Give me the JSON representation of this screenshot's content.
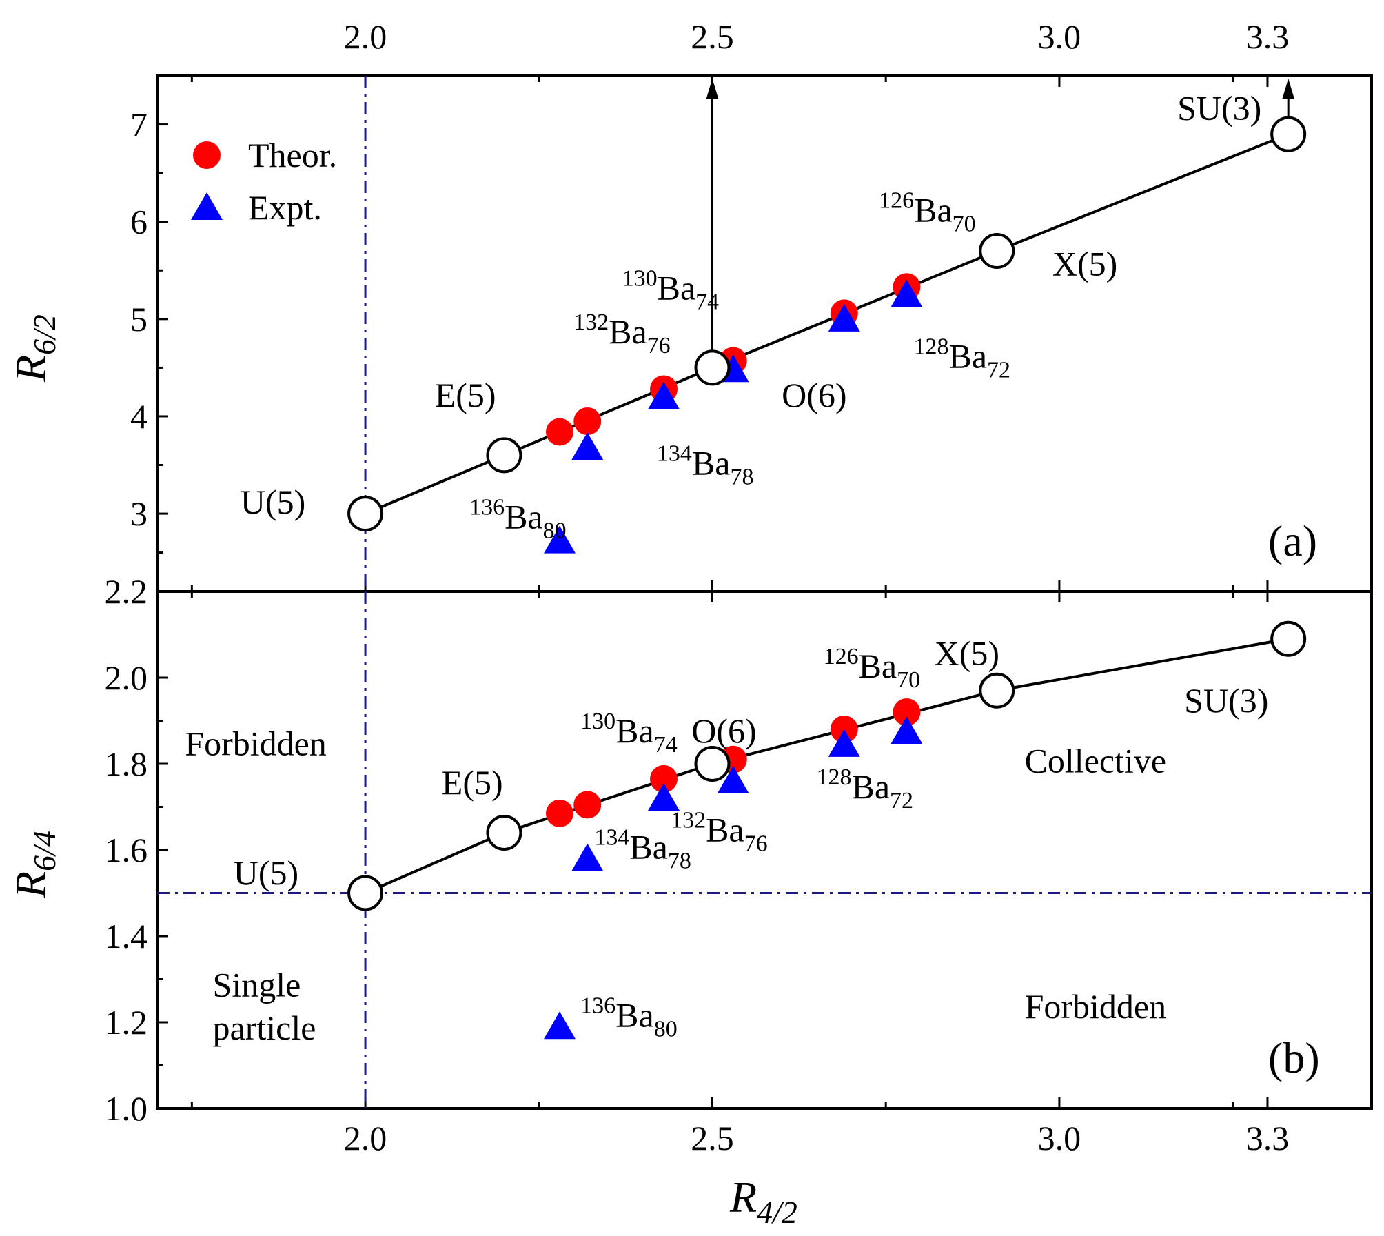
{
  "chart_data": [
    {
      "type": "scatter",
      "panel_label": "(a)",
      "xlabel": "",
      "ylabel": "R",
      "ylabel_sub": "6/2",
      "xlim": [
        1.7,
        3.45
      ],
      "ylim": [
        2.2,
        7.5
      ],
      "x_tick_values": [
        2.0,
        2.5,
        3.0,
        3.3
      ],
      "x_ticks": [
        "2.0",
        "2.5",
        "3.0",
        "3.3"
      ],
      "y_tick_values": [
        2.2,
        3,
        4,
        5,
        6,
        7
      ],
      "y_ticks": [
        "2.2",
        "3",
        "4",
        "5",
        "6",
        "7"
      ],
      "legend": {
        "position": "top-left",
        "entries": [
          "Theor.",
          "Expt."
        ]
      },
      "series": [
        {
          "name": "Theor.",
          "marker": "filled-circle",
          "color": "#ff0000",
          "points": [
            {
              "x": 2.28,
              "y": 3.84
            },
            {
              "x": 2.32,
              "y": 3.95
            },
            {
              "x": 2.43,
              "y": 4.28
            },
            {
              "x": 2.53,
              "y": 4.57
            },
            {
              "x": 2.69,
              "y": 5.06
            },
            {
              "x": 2.78,
              "y": 5.33
            }
          ]
        },
        {
          "name": "Expt.",
          "marker": "filled-triangle",
          "color": "#0000ff",
          "points": [
            {
              "x": 2.28,
              "y": 2.72
            },
            {
              "x": 2.32,
              "y": 3.68
            },
            {
              "x": 2.43,
              "y": 4.2
            },
            {
              "x": 2.53,
              "y": 4.48
            },
            {
              "x": 2.69,
              "y": 5.0
            },
            {
              "x": 2.78,
              "y": 5.25
            }
          ]
        },
        {
          "name": "",
          "marker": "open-circle",
          "color": "#000000",
          "connected": true,
          "points": [
            {
              "x": 2.0,
              "y": 3.0
            },
            {
              "x": 2.2,
              "y": 3.6
            },
            {
              "x": 2.5,
              "y": 4.5
            },
            {
              "x": 2.91,
              "y": 5.7
            },
            {
              "x": 3.33,
              "y": 6.9
            }
          ]
        }
      ],
      "reference_lines": [
        {
          "axis": "x",
          "value": 2.0,
          "style": "dash-dot"
        }
      ],
      "arrows": [
        {
          "x": 2.5,
          "y_from": 4.5,
          "y_to": 7.5
        },
        {
          "x": 3.33,
          "y_from": 6.9,
          "y_to": 7.5
        }
      ],
      "annotations": [
        {
          "text": "U(5)",
          "x": 1.82,
          "y": 3.0
        },
        {
          "text": "E(5)",
          "x": 2.1,
          "y": 4.1
        },
        {
          "text": "O(6)",
          "x": 2.6,
          "y": 4.1
        },
        {
          "text": "X(5)",
          "x": 2.99,
          "y": 5.45
        },
        {
          "text": "SU(3)",
          "x": 3.17,
          "y": 7.05
        },
        {
          "mass": "136",
          "element": "Ba",
          "sub": "80",
          "x": 2.15,
          "y": 2.85
        },
        {
          "mass": "134",
          "element": "Ba",
          "sub": "78",
          "x": 2.42,
          "y": 3.4
        },
        {
          "mass": "132",
          "element": "Ba",
          "sub": "76",
          "x": 2.3,
          "y": 4.75
        },
        {
          "mass": "130",
          "element": "Ba",
          "sub": "74",
          "x": 2.37,
          "y": 5.2
        },
        {
          "mass": "128",
          "element": "Ba",
          "sub": "72",
          "x": 2.79,
          "y": 4.5
        },
        {
          "mass": "126",
          "element": "Ba",
          "sub": "70",
          "x": 2.74,
          "y": 6.0
        }
      ]
    },
    {
      "type": "scatter",
      "panel_label": "(b)",
      "xlabel": "R",
      "xlabel_sub": "4/2",
      "ylabel": "R",
      "ylabel_sub": "6/4",
      "xlim": [
        1.7,
        3.45
      ],
      "ylim": [
        1.0,
        2.2
      ],
      "x_tick_values": [
        2.0,
        2.5,
        3.0,
        3.3
      ],
      "x_ticks": [
        "2.0",
        "2.5",
        "3.0",
        "3.3"
      ],
      "y_tick_values": [
        1.0,
        1.2,
        1.4,
        1.6,
        1.8,
        2.0
      ],
      "y_ticks": [
        "1.0",
        "1.2",
        "1.4",
        "1.6",
        "1.8",
        "2.0"
      ],
      "series": [
        {
          "name": "Theor.",
          "marker": "filled-circle",
          "color": "#ff0000",
          "points": [
            {
              "x": 2.28,
              "y": 1.685
            },
            {
              "x": 2.32,
              "y": 1.705
            },
            {
              "x": 2.43,
              "y": 1.765
            },
            {
              "x": 2.53,
              "y": 1.81
            },
            {
              "x": 2.69,
              "y": 1.88
            },
            {
              "x": 2.78,
              "y": 1.92
            }
          ]
        },
        {
          "name": "Expt.",
          "marker": "filled-triangle",
          "color": "#0000ff",
          "points": [
            {
              "x": 2.28,
              "y": 1.19
            },
            {
              "x": 2.32,
              "y": 1.58
            },
            {
              "x": 2.43,
              "y": 1.72
            },
            {
              "x": 2.53,
              "y": 1.76
            },
            {
              "x": 2.69,
              "y": 1.845
            },
            {
              "x": 2.78,
              "y": 1.875
            }
          ]
        },
        {
          "name": "",
          "marker": "open-circle",
          "color": "#000000",
          "connected": true,
          "points": [
            {
              "x": 2.0,
              "y": 1.5
            },
            {
              "x": 2.2,
              "y": 1.64
            },
            {
              "x": 2.5,
              "y": 1.8
            },
            {
              "x": 2.91,
              "y": 1.97
            },
            {
              "x": 3.33,
              "y": 2.09
            }
          ]
        }
      ],
      "reference_lines": [
        {
          "axis": "x",
          "value": 2.0,
          "style": "dash-dot"
        },
        {
          "axis": "y",
          "value": 1.5,
          "style": "dash-dot"
        }
      ],
      "annotations": [
        {
          "text": "U(5)",
          "x": 1.81,
          "y": 1.52
        },
        {
          "text": "E(5)",
          "x": 2.11,
          "y": 1.73
        },
        {
          "text": "O(6)",
          "x": 2.47,
          "y": 1.85
        },
        {
          "text": "X(5)",
          "x": 2.82,
          "y": 2.03
        },
        {
          "text": "SU(3)",
          "x": 3.18,
          "y": 1.92
        },
        {
          "text": "Forbidden",
          "x": 1.74,
          "y": 1.82
        },
        {
          "text": "Collective",
          "x": 2.95,
          "y": 1.78
        },
        {
          "text": "Forbidden",
          "x": 2.95,
          "y": 1.21
        },
        {
          "text": "Single",
          "x": 1.78,
          "y": 1.26
        },
        {
          "text": "particle",
          "x": 1.78,
          "y": 1.16
        },
        {
          "mass": "136",
          "element": "Ba",
          "sub": "80",
          "x": 2.31,
          "y": 1.19
        },
        {
          "mass": "134",
          "element": "Ba",
          "sub": "78",
          "x": 2.33,
          "y": 1.58
        },
        {
          "mass": "132",
          "element": "Ba",
          "sub": "76",
          "x": 2.44,
          "y": 1.62
        },
        {
          "mass": "130",
          "element": "Ba",
          "sub": "74",
          "x": 2.31,
          "y": 1.85
        },
        {
          "mass": "128",
          "element": "Ba",
          "sub": "72",
          "x": 2.65,
          "y": 1.72
        },
        {
          "mass": "126",
          "element": "Ba",
          "sub": "70",
          "x": 2.66,
          "y": 2.0
        }
      ]
    }
  ]
}
